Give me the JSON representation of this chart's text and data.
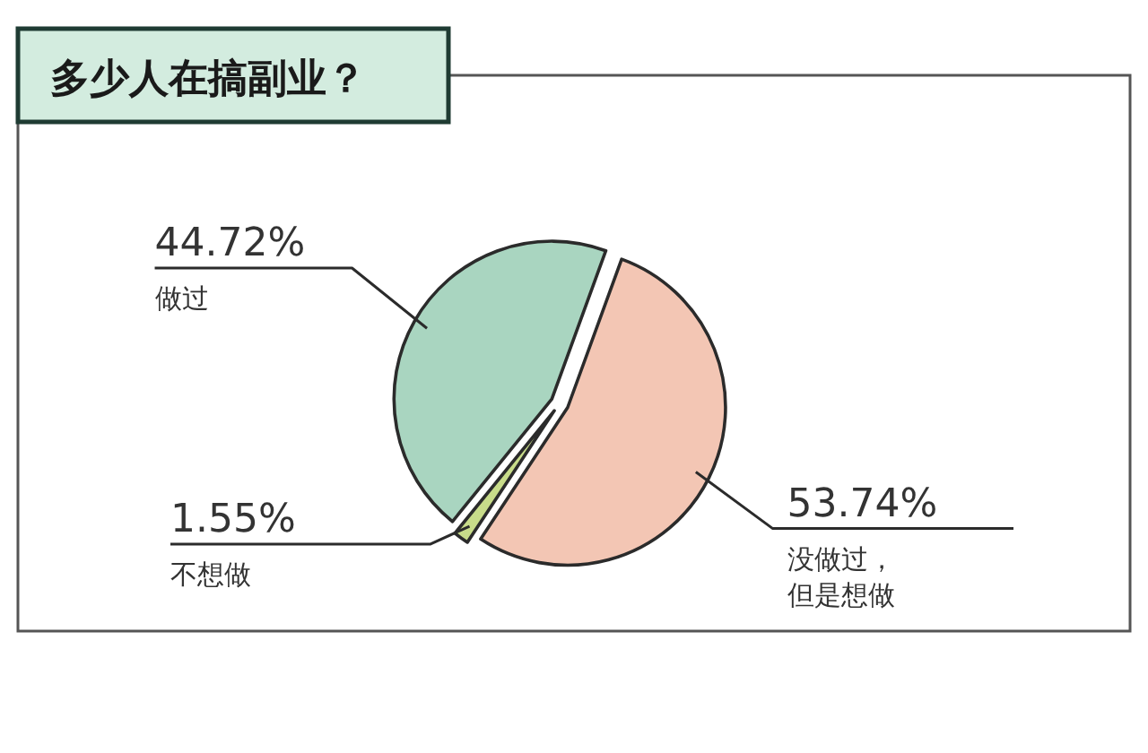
{
  "chart_data": {
    "type": "pie",
    "title": "多少人在搞副业？",
    "categories": [
      "没做过，但是想做",
      "不想做",
      "做过"
    ],
    "values": [
      53.74,
      1.55,
      44.72
    ],
    "colors": [
      "#f3c6b4",
      "#c8dc8a",
      "#a9d5c0"
    ],
    "value_labels": [
      "53.74%",
      "1.55%",
      "44.72%"
    ]
  }
}
